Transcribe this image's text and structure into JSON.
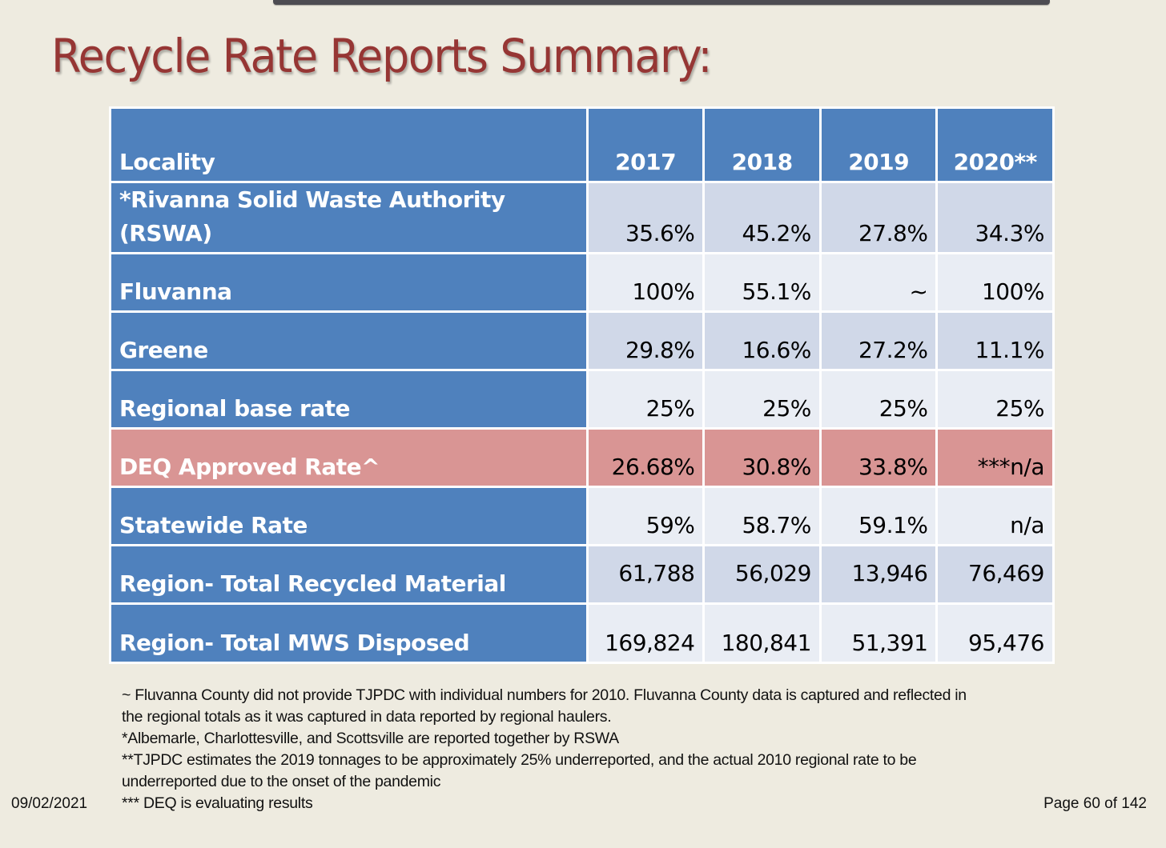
{
  "title": "Recycle Rate Reports Summary:",
  "table": {
    "headers": [
      "Locality",
      "2017",
      "2018",
      "2019",
      "2020**"
    ],
    "rows": [
      {
        "label": "*Rivanna Solid Waste Authority (RSWA)",
        "values": [
          "35.6%",
          "45.2%",
          "27.8%",
          "34.3%"
        ]
      },
      {
        "label": "Fluvanna",
        "values": [
          "100%",
          "55.1%",
          "~",
          "100%"
        ]
      },
      {
        "label": "Greene",
        "values": [
          "29.8%",
          "16.6%",
          "27.2%",
          "11.1%"
        ]
      },
      {
        "label": "Regional base rate",
        "values": [
          "25%",
          "25%",
          "25%",
          "25%"
        ]
      },
      {
        "label": "DEQ Approved Rate^",
        "values": [
          "26.68%",
          "30.8%",
          "33.8%",
          "***n/a"
        ]
      },
      {
        "label": "Statewide Rate",
        "values": [
          "59%",
          "58.7%",
          "59.1%",
          "n/a"
        ]
      },
      {
        "label": "Region- Total Recycled Material",
        "values": [
          "61,788",
          "56,029",
          "13,946",
          "76,469"
        ]
      },
      {
        "label": "Region- Total MWS Disposed",
        "values": [
          "169,824",
          "180,841",
          "51,391",
          "95,476"
        ]
      }
    ]
  },
  "notes": [
    "~ Fluvanna County did not provide TJPDC with individual numbers for 2010. Fluvanna County data is captured and reflected in",
    "the regional totals as it was captured in data reported by regional haulers.",
    "*Albemarle, Charlottesville, and Scottsville are reported together by RSWA",
    "**TJPDC estimates the 2019 tonnages to be approximately 25% underreported, and the actual 2010 regional rate to be",
    "underreported due to the onset of the pandemic",
    "*** DEQ is evaluating results"
  ],
  "footer": {
    "date": "09/02/2021",
    "page": "Page 60 of 142"
  },
  "colors": {
    "title": "#963634",
    "header_blue": "#4f81bd",
    "row_dark": "#d0d8e8",
    "row_light": "#e9edf4",
    "deq_highlight": "#d99594",
    "background": "#eeebe0"
  }
}
